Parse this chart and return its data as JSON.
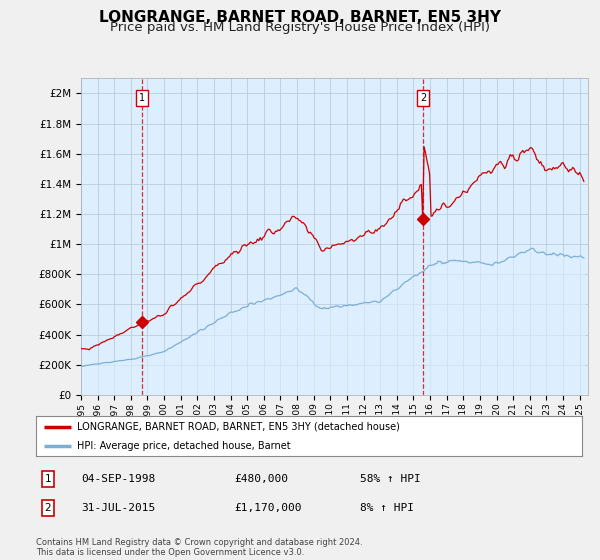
{
  "title": "LONGRANGE, BARNET ROAD, BARNET, EN5 3HY",
  "subtitle": "Price paid vs. HM Land Registry's House Price Index (HPI)",
  "title_fontsize": 11,
  "subtitle_fontsize": 9.5,
  "xlim_start": 1995.0,
  "xlim_end": 2025.5,
  "ylim_min": 0,
  "ylim_max": 2100000,
  "yticks": [
    0,
    200000,
    400000,
    600000,
    800000,
    1000000,
    1200000,
    1400000,
    1600000,
    1800000,
    2000000
  ],
  "ytick_labels": [
    "£0",
    "£200K",
    "£400K",
    "£600K",
    "£800K",
    "£1M",
    "£1.2M",
    "£1.4M",
    "£1.6M",
    "£1.8M",
    "£2M"
  ],
  "xtick_years": [
    1995,
    1996,
    1997,
    1998,
    1999,
    2000,
    2001,
    2002,
    2003,
    2004,
    2005,
    2006,
    2007,
    2008,
    2009,
    2010,
    2011,
    2012,
    2013,
    2014,
    2015,
    2016,
    2017,
    2018,
    2019,
    2020,
    2021,
    2022,
    2023,
    2024,
    2025
  ],
  "price_paid_color": "#cc0000",
  "hpi_color": "#7bafd4",
  "hpi_fill_color": "#ddeeff",
  "marker1_x": 1998.67,
  "marker1_y": 480000,
  "marker2_x": 2015.58,
  "marker2_y": 1170000,
  "vline1_x": 1998.67,
  "vline2_x": 2015.58,
  "vline_color": "#cc0000",
  "legend_entry1": "LONGRANGE, BARNET ROAD, BARNET, EN5 3HY (detached house)",
  "legend_entry2": "HPI: Average price, detached house, Barnet",
  "footer_text": "Contains HM Land Registry data © Crown copyright and database right 2024.\nThis data is licensed under the Open Government Licence v3.0.",
  "background_color": "#f0f0f0",
  "plot_background": "#ddeeff",
  "grid_color": "#bbccdd"
}
